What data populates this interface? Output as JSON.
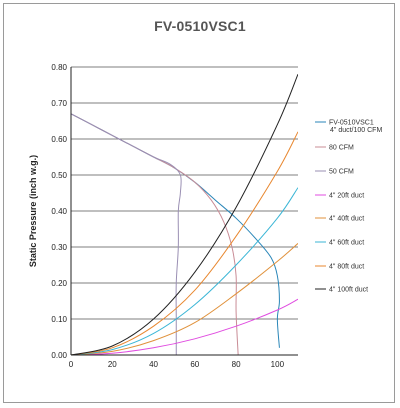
{
  "chart_data": {
    "type": "line",
    "title": "FV-0510VSC1",
    "xlabel": "",
    "ylabel": "Static Pressure (inch w.g.)",
    "xlim": [
      0,
      110
    ],
    "ylim": [
      0,
      0.8
    ],
    "x_ticks": [
      "0",
      "20",
      "40",
      "60",
      "80",
      "100"
    ],
    "y_ticks": [
      "0.00",
      "0.10",
      "0.20",
      "0.30",
      "0.40",
      "0.50",
      "0.60",
      "0.70",
      "0.80"
    ],
    "grid": "horizontal",
    "legend_position": "right",
    "series": [
      {
        "name": "FV-0510VSC1",
        "name_line2": "4\" duct/100 CFM",
        "color": "#2a86b8",
        "points": [
          [
            0,
            0.67
          ],
          [
            10,
            0.64
          ],
          [
            20,
            0.61
          ],
          [
            30,
            0.58
          ],
          [
            40,
            0.55
          ],
          [
            50,
            0.52
          ],
          [
            60,
            0.48
          ],
          [
            70,
            0.43
          ],
          [
            80,
            0.38
          ],
          [
            90,
            0.32
          ],
          [
            97,
            0.27
          ],
          [
            100,
            0.22
          ],
          [
            101,
            0.15
          ],
          [
            100,
            0.1
          ],
          [
            101,
            0.02
          ]
        ]
      },
      {
        "name": "80 CFM",
        "color": "#c98c96",
        "points": [
          [
            0,
            0.67
          ],
          [
            10,
            0.64
          ],
          [
            20,
            0.61
          ],
          [
            30,
            0.58
          ],
          [
            40,
            0.55
          ],
          [
            50,
            0.52
          ],
          [
            60,
            0.48
          ],
          [
            68,
            0.43
          ],
          [
            74,
            0.37
          ],
          [
            78,
            0.3
          ],
          [
            80,
            0.22
          ],
          [
            80,
            0.12
          ],
          [
            81,
            0.0
          ]
        ]
      },
      {
        "name": "50 CFM",
        "color": "#9a8fb3",
        "points": [
          [
            0,
            0.67
          ],
          [
            10,
            0.64
          ],
          [
            20,
            0.61
          ],
          [
            30,
            0.58
          ],
          [
            40,
            0.55
          ],
          [
            48,
            0.53
          ],
          [
            53,
            0.5
          ],
          [
            53,
            0.45
          ],
          [
            52,
            0.4
          ],
          [
            52,
            0.3
          ],
          [
            51,
            0.2
          ],
          [
            51,
            0.1
          ],
          [
            51,
            0.0
          ]
        ]
      },
      {
        "name": "4\" 20ft duct",
        "color": "#e04ce0",
        "points": [
          [
            0,
            0
          ],
          [
            20,
            0.005
          ],
          [
            40,
            0.02
          ],
          [
            60,
            0.045
          ],
          [
            80,
            0.08
          ],
          [
            100,
            0.125
          ],
          [
            110,
            0.155
          ]
        ]
      },
      {
        "name": "4\" 40ft duct",
        "color": "#e0913b",
        "points": [
          [
            0,
            0
          ],
          [
            20,
            0.01
          ],
          [
            40,
            0.04
          ],
          [
            60,
            0.09
          ],
          [
            80,
            0.17
          ],
          [
            100,
            0.26
          ],
          [
            110,
            0.31
          ]
        ]
      },
      {
        "name": "4\" 60ft duct",
        "color": "#3bb6d6",
        "points": [
          [
            0,
            0
          ],
          [
            20,
            0.015
          ],
          [
            40,
            0.06
          ],
          [
            60,
            0.14
          ],
          [
            80,
            0.25
          ],
          [
            100,
            0.38
          ],
          [
            110,
            0.465
          ]
        ]
      },
      {
        "name": "4\" 80ft duct",
        "color": "#e8872f",
        "points": [
          [
            0,
            0
          ],
          [
            20,
            0.02
          ],
          [
            40,
            0.08
          ],
          [
            60,
            0.18
          ],
          [
            80,
            0.33
          ],
          [
            100,
            0.51
          ],
          [
            110,
            0.62
          ]
        ]
      },
      {
        "name": "4\" 100ft duct",
        "color": "#222222",
        "points": [
          [
            0,
            0
          ],
          [
            20,
            0.025
          ],
          [
            40,
            0.1
          ],
          [
            60,
            0.23
          ],
          [
            80,
            0.41
          ],
          [
            100,
            0.64
          ],
          [
            110,
            0.78
          ]
        ]
      }
    ]
  }
}
